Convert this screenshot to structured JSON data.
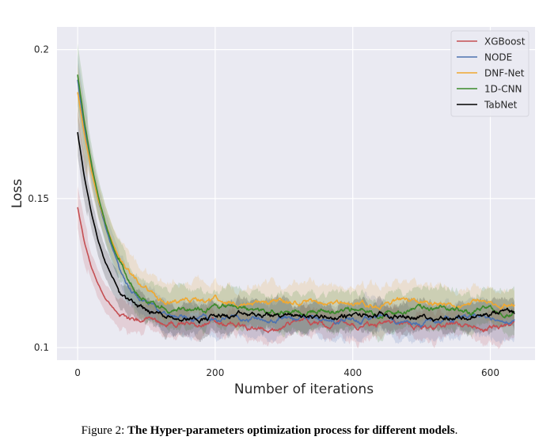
{
  "chart_data": {
    "type": "line",
    "title": "",
    "xlabel": "Number of iterations",
    "ylabel": "Loss",
    "xlim": [
      -30,
      665
    ],
    "ylim": [
      0.0958,
      0.2076
    ],
    "x_ticks": [
      0,
      200,
      400,
      600
    ],
    "x_tick_labels": [
      "0",
      "200",
      "400",
      "600"
    ],
    "y_ticks": [
      0.1,
      0.15,
      0.2
    ],
    "y_tick_labels": [
      "0.1",
      "0.15",
      "0.2"
    ],
    "grid": true,
    "legend_position": "top-right",
    "shaded_band": "confidence interval around each line",
    "x": [
      0,
      10,
      20,
      30,
      40,
      50,
      60,
      70,
      80,
      90,
      100,
      120,
      140,
      160,
      200,
      250,
      300,
      350,
      400,
      450,
      500,
      550,
      600,
      635
    ],
    "series": [
      {
        "name": "XGBoost",
        "color": "#c44e52",
        "values": [
          0.147,
          0.1355,
          0.127,
          0.121,
          0.1165,
          0.1135,
          0.1112,
          0.1098,
          0.1089,
          0.1083,
          0.1079,
          0.1076,
          0.1075,
          0.1074,
          0.1078,
          0.107,
          0.1079,
          0.1072,
          0.1068,
          0.1075,
          0.107,
          0.1079,
          0.107,
          0.1075
        ],
        "band": 0.0045
      },
      {
        "name": "NODE",
        "color": "#4c72b0",
        "values": [
          0.19,
          0.1735,
          0.16,
          0.149,
          0.1405,
          0.1335,
          0.128,
          0.1237,
          0.1203,
          0.1176,
          0.1155,
          0.1127,
          0.1112,
          0.1104,
          0.1098,
          0.109,
          0.1102,
          0.1093,
          0.1097,
          0.1092,
          0.109,
          0.11,
          0.1095,
          0.1097
        ],
        "band": 0.0055
      },
      {
        "name": "DNF-Net",
        "color": "#f0a830",
        "values": [
          0.1857,
          0.1715,
          0.1595,
          0.1495,
          0.1415,
          0.1352,
          0.1302,
          0.1262,
          0.1232,
          0.1209,
          0.1192,
          0.117,
          0.116,
          0.1156,
          0.1152,
          0.1148,
          0.1155,
          0.1152,
          0.115,
          0.1147,
          0.1156,
          0.1151,
          0.1149,
          0.115
        ],
        "band": 0.006
      },
      {
        "name": "1D-CNN",
        "color": "#3b8a2a",
        "values": [
          0.1915,
          0.1755,
          0.162,
          0.1508,
          0.1418,
          0.1346,
          0.1288,
          0.1242,
          0.1205,
          0.1177,
          0.116,
          0.114,
          0.1133,
          0.1129,
          0.1126,
          0.1123,
          0.1129,
          0.1122,
          0.1125,
          0.1121,
          0.1126,
          0.1123,
          0.1128,
          0.1122
        ],
        "band": 0.0065
      },
      {
        "name": "TabNet",
        "color": "#000000",
        "values": [
          0.1724,
          0.157,
          0.145,
          0.1357,
          0.1287,
          0.1235,
          0.1197,
          0.1168,
          0.1148,
          0.1133,
          0.1123,
          0.1112,
          0.1108,
          0.1106,
          0.1106,
          0.1103,
          0.1108,
          0.1104,
          0.1106,
          0.1103,
          0.1107,
          0.1104,
          0.1108,
          0.111
        ],
        "band": 0.005
      }
    ]
  },
  "caption": {
    "prefix": "Figure 2: ",
    "bold_text": "The Hyper-parameters optimization process for different models",
    "suffix": "."
  }
}
